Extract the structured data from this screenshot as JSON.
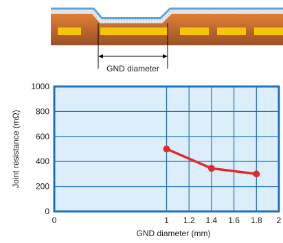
{
  "colors": {
    "plot_background": "#dceefa",
    "frame": "#1f6fc0",
    "grid": "#1f6fc0",
    "series_line": "#e02a2a",
    "copper": "#c8682b",
    "copper_dark": "#8a4a22",
    "pad": "#f6c40c",
    "solder_mask": "#5aa4d8",
    "laminate_dots": "#cfcfcf"
  },
  "diagram": {
    "dimension_label": "GND diameter"
  },
  "chart_data": {
    "type": "line",
    "title": "",
    "xlabel": "GND diameter (mm)",
    "ylabel": "Joint resistance (mΩ)",
    "xlim": [
      0,
      2
    ],
    "ylim": [
      0,
      1000
    ],
    "x_ticks": [
      0,
      1,
      1.2,
      1.4,
      1.6,
      1.8,
      2
    ],
    "x_tick_labels": [
      "0",
      "1",
      "1.2",
      "1.4",
      "1.6",
      "1.8",
      "2"
    ],
    "y_ticks": [
      0,
      200,
      400,
      600,
      800,
      1000
    ],
    "y_tick_labels": [
      "0",
      "200",
      "400",
      "600",
      "800",
      "1000"
    ],
    "x_gridlines": [
      1,
      1.2,
      1.4,
      1.6,
      1.8
    ],
    "grid": true,
    "legend": "none",
    "series": [
      {
        "x": [
          1,
          1.4,
          1.8
        ],
        "y": [
          500,
          345,
          300
        ],
        "color": "#e02a2a",
        "marker": "circle"
      }
    ]
  }
}
